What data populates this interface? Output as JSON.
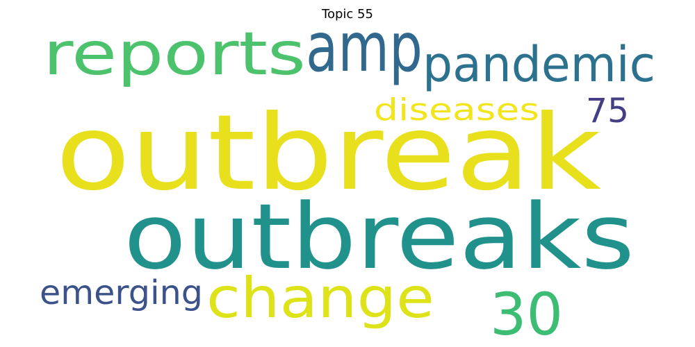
{
  "title": "Topic 55",
  "words": [
    {
      "text": "outbreak",
      "color": "#e8e01c"
    },
    {
      "text": "outbreaks",
      "color": "#21918c"
    },
    {
      "text": "reports",
      "color": "#4cc26c"
    },
    {
      "text": "amp",
      "color": "#31688e"
    },
    {
      "text": "pandemic",
      "color": "#2c728e"
    },
    {
      "text": "change",
      "color": "#dde318"
    },
    {
      "text": "30",
      "color": "#3dbc74"
    },
    {
      "text": "emerging",
      "color": "#3b528b"
    },
    {
      "text": "diseases",
      "color": "#f2e51d"
    },
    {
      "text": "75",
      "color": "#433e85"
    }
  ]
}
